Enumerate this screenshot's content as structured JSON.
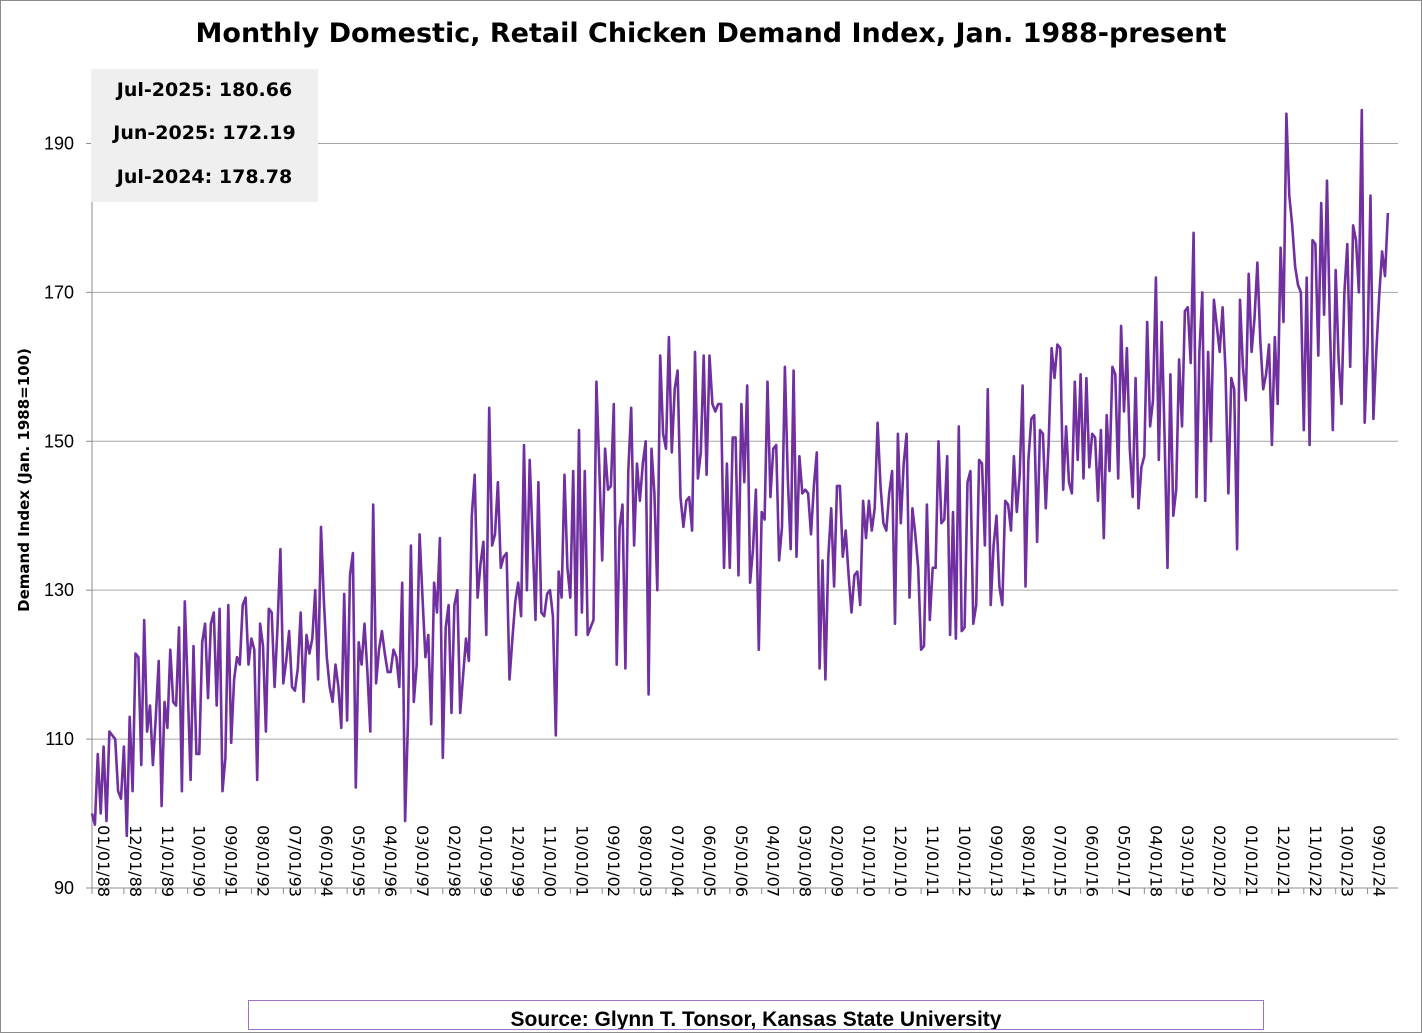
{
  "chart_data": {
    "type": "line",
    "title": "Monthly Domestic, Retail Chicken Demand Index, Jan. 1988-present",
    "ylabel": "Demand Index (Jan. 1988=100)",
    "xlabel": "",
    "ylim": [
      90,
      200
    ],
    "yticks": [
      90,
      110,
      130,
      150,
      170,
      190
    ],
    "grid": "horizontal",
    "x_start": "1988-01",
    "x_end": "2025-07",
    "xtick_labels": [
      "01/01/88",
      "12/01/88",
      "11/01/89",
      "10/01/90",
      "09/01/91",
      "08/01/92",
      "07/01/93",
      "06/01/94",
      "05/01/95",
      "04/01/96",
      "03/01/97",
      "02/01/98",
      "01/01/99",
      "12/01/99",
      "11/01/00",
      "10/01/01",
      "09/01/02",
      "08/01/03",
      "07/01/04",
      "06/01/05",
      "05/01/06",
      "04/01/07",
      "03/01/08",
      "02/01/09",
      "01/01/10",
      "12/01/10",
      "11/01/11",
      "10/01/12",
      "09/01/13",
      "08/01/14",
      "07/01/15",
      "06/01/16",
      "05/01/17",
      "04/01/18",
      "03/01/19",
      "02/01/20",
      "01/01/21",
      "12/01/21",
      "11/01/22",
      "10/01/23",
      "09/01/24"
    ],
    "series": [
      {
        "color": "#7030a0",
        "values": [
          100,
          98.5,
          108,
          100,
          109,
          99,
          111,
          110.5,
          110,
          103,
          102,
          109,
          97,
          113,
          103,
          121.5,
          121,
          106.5,
          126,
          111,
          114.5,
          106.5,
          113,
          120.5,
          101,
          115,
          111.5,
          122,
          115,
          114.5,
          125,
          103,
          128.5,
          117,
          104.5,
          122.5,
          108,
          108,
          123,
          125.5,
          115.5,
          125.5,
          127,
          114.5,
          127.5,
          103,
          107.5,
          128,
          109.5,
          118,
          121,
          120,
          128,
          129,
          120,
          123.5,
          122,
          104.5,
          125.5,
          122.5,
          111,
          127.5,
          127,
          117,
          125,
          135.5,
          117.5,
          120.5,
          124.5,
          117,
          116.5,
          119.5,
          127,
          115,
          124,
          121.5,
          123.5,
          130,
          118,
          138.5,
          128.5,
          121,
          117,
          115,
          120,
          117,
          111.5,
          129.5,
          112.5,
          132,
          135,
          103.5,
          123,
          120,
          125.5,
          119,
          111,
          141.5,
          117.5,
          122,
          124.5,
          121.5,
          119,
          119,
          122,
          121,
          117,
          131,
          99,
          112.5,
          136,
          115,
          120,
          137.5,
          129,
          121,
          124,
          112,
          131,
          127,
          137,
          107.5,
          125,
          128,
          113.5,
          128,
          130,
          113.5,
          118.5,
          123.5,
          120.5,
          140,
          145.5,
          129,
          133.5,
          136.5,
          124,
          154.5,
          136,
          137.5,
          144.5,
          133,
          134.5,
          135,
          118,
          123.5,
          128.5,
          131,
          126.5,
          149.5,
          130,
          147.5,
          137,
          126,
          144.5,
          127,
          126.5,
          129.5,
          130,
          126.5,
          110.5,
          132.5,
          129,
          145.5,
          133,
          129,
          146,
          124,
          151.5,
          127,
          146,
          124,
          125,
          126,
          158,
          146.5,
          134,
          149,
          143.5,
          144,
          155,
          120,
          138.5,
          141.5,
          119.5,
          146,
          154.5,
          136,
          147,
          142,
          147,
          150,
          116,
          149,
          143,
          130,
          161.5,
          151,
          149,
          164,
          148.5,
          157,
          159.5,
          142.5,
          138.5,
          142,
          142.5,
          138,
          162,
          145,
          148.5,
          161.5,
          145.5,
          161.5,
          155,
          154,
          155,
          155,
          133,
          147,
          133,
          150.5,
          150.5,
          132,
          155,
          144.5,
          157.5,
          131,
          135.5,
          143.5,
          122,
          140.5,
          139.5,
          158,
          142.5,
          149,
          149.5,
          134,
          138.5,
          160,
          145,
          135.5,
          159.5,
          134.5,
          148,
          143,
          143.5,
          143,
          137.5,
          144,
          148.5,
          119.5,
          134,
          118,
          134.5,
          141,
          130.5,
          144,
          144,
          134.5,
          138,
          132,
          127,
          132,
          132.5,
          128,
          142,
          137,
          142,
          138,
          141,
          152.5,
          144,
          139,
          138,
          143,
          146,
          125.5,
          151,
          139,
          147,
          151,
          129,
          141,
          137.5,
          133,
          122,
          122.5,
          141.5,
          126,
          133,
          133,
          150,
          139,
          139.5,
          148,
          124,
          140.5,
          123.5,
          152,
          124.5,
          125,
          144.5,
          146,
          125.5,
          128,
          147.5,
          147,
          136,
          157,
          128,
          136,
          140,
          130.5,
          128,
          142,
          141.5,
          138,
          148,
          140.5,
          145.5,
          157.5,
          130.5,
          147.5,
          153,
          153.5,
          136.5,
          151.5,
          151,
          141,
          150,
          162.5,
          158.5,
          163,
          162.5,
          143.5,
          152,
          144.5,
          143,
          158,
          147.5,
          159,
          145,
          158.5,
          146.5,
          151,
          150.5,
          142,
          151.5,
          137,
          153.5,
          146,
          160,
          159,
          145,
          165.5,
          154,
          162.5,
          149,
          142.5,
          158.5,
          141,
          146.5,
          148,
          166,
          152,
          155.5,
          172,
          147.5,
          166,
          150.5,
          133,
          159,
          140,
          143.5,
          161,
          152,
          167.5,
          168,
          160.5,
          178,
          142.5,
          162,
          170,
          142,
          162,
          150,
          169,
          165.5,
          162,
          168,
          159.5,
          143,
          158.5,
          157,
          135.5,
          169,
          160,
          155.5,
          172.5,
          162,
          166.5,
          174,
          163.5,
          157,
          159,
          163,
          149.5,
          164,
          155,
          176,
          166,
          194,
          183,
          179,
          173.5,
          171,
          170,
          151.5,
          172,
          149.5,
          177,
          176.5,
          161.5,
          182,
          167,
          185,
          165.5,
          151.5,
          173,
          161,
          155,
          170,
          176.5,
          160,
          179,
          177,
          170,
          194.5,
          152.5,
          163,
          183,
          153,
          162,
          169.5,
          175.5,
          172.19,
          180.66
        ]
      }
    ]
  },
  "stats": [
    {
      "label": "Jul-2025:",
      "value": "180.66"
    },
    {
      "label": "Jun-2025:",
      "value": "172.19"
    },
    {
      "label": "Jul-2024:",
      "value": "178.78"
    }
  ],
  "source": "Source: Glynn T. Tonsor, Kansas State University"
}
